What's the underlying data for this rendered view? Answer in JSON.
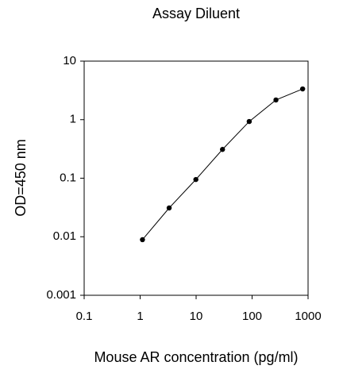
{
  "chart_data": {
    "type": "line",
    "title": "Assay Diluent",
    "xlabel": "Mouse AR concentration (pg/ml)",
    "ylabel": "OD=450 nm",
    "x": [
      1.1,
      3.3,
      9.9,
      29.6,
      88.9,
      266.7,
      800
    ],
    "series": [
      {
        "name": "Assay Diluent",
        "color": "#000000",
        "values": [
          0.0089,
          0.031,
          0.095,
          0.31,
          0.93,
          2.17,
          3.35
        ]
      }
    ],
    "xscale": "log",
    "yscale": "log",
    "xlim": [
      0.1,
      1000
    ],
    "xticks": [
      0.1,
      1,
      10,
      100,
      1000
    ],
    "ylim": [
      0.001,
      10
    ],
    "yticks": [
      0.001,
      0.01,
      0.1,
      1,
      10
    ],
    "grid": false
  }
}
